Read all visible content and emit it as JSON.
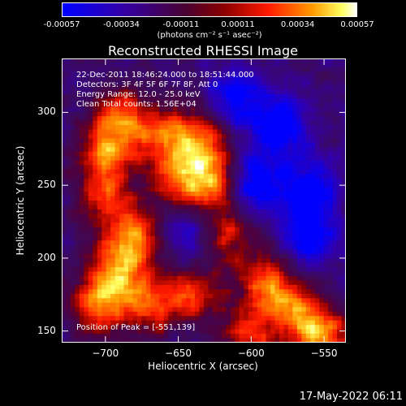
{
  "colorbar": {
    "ticks": [
      "-0.00057",
      "-0.00034",
      "-0.00011",
      "0.00011",
      "0.00034",
      "0.00057"
    ],
    "tick_values": [
      -0.00057,
      -0.00034,
      -0.00011,
      0.00011,
      0.00034,
      0.00057
    ],
    "unit": "(photons cm⁻² s⁻¹ asec⁻²)",
    "colors": [
      "#0000ff",
      "#4b0082",
      "#8b0000",
      "#ff0000",
      "#ff8c00",
      "#ffffff"
    ]
  },
  "chart_data": {
    "type": "heatmap",
    "title": "Reconstructed RHESSI Image",
    "xlabel": "Heliocentric X (arcsec)",
    "ylabel": "Heliocentric Y (arcsec)",
    "xlim": [
      -730,
      -535
    ],
    "ylim": [
      142,
      337
    ],
    "xticks": [
      -700,
      -650,
      -600,
      -550
    ],
    "xtick_labels": [
      "−700",
      "−650",
      "−600",
      "−550"
    ],
    "yticks": [
      150,
      200,
      250,
      300
    ],
    "ytick_labels": [
      "150",
      "200",
      "250",
      "300"
    ],
    "annotations": [
      "22-Dec-2011 18:46:24.000 to 18:51:44.000",
      "Detectors: 3F 4F 5F 6F 7F 8F, Att 0",
      "Energy Range: 12.0 - 25.0 keV",
      "Clean    Total counts: 1.56E+04",
      "Position of Peak = [-551,139]"
    ],
    "peak_position": [
      -551,
      139
    ],
    "bright_regions": [
      {
        "x": -700,
        "y": 270,
        "level": 0.8
      },
      {
        "x": -690,
        "y": 295,
        "level": 0.85
      },
      {
        "x": -660,
        "y": 285,
        "level": 0.7
      },
      {
        "x": -635,
        "y": 282,
        "level": 0.8
      },
      {
        "x": -625,
        "y": 252,
        "level": 1.0
      },
      {
        "x": -650,
        "y": 255,
        "level": 0.75
      },
      {
        "x": -700,
        "y": 240,
        "level": 0.7
      },
      {
        "x": -680,
        "y": 212,
        "level": 0.9
      },
      {
        "x": -695,
        "y": 190,
        "level": 0.85
      },
      {
        "x": -670,
        "y": 170,
        "level": 0.75
      },
      {
        "x": -705,
        "y": 165,
        "level": 0.8
      },
      {
        "x": -640,
        "y": 175,
        "level": 0.7
      },
      {
        "x": -620,
        "y": 215,
        "level": 0.7
      },
      {
        "x": -590,
        "y": 185,
        "level": 0.75
      },
      {
        "x": -570,
        "y": 165,
        "level": 0.8
      },
      {
        "x": -551,
        "y": 145,
        "level": 1.0
      },
      {
        "x": -600,
        "y": 150,
        "level": 0.7
      }
    ],
    "dim_regions": [
      {
        "x": -580,
        "y": 290,
        "level": -0.8
      },
      {
        "x": -560,
        "y": 250,
        "level": -0.7
      },
      {
        "x": -600,
        "y": 250,
        "level": -0.9
      },
      {
        "x": -640,
        "y": 215,
        "level": -0.6
      },
      {
        "x": -560,
        "y": 215,
        "level": -0.8
      },
      {
        "x": -610,
        "y": 310,
        "level": -0.7
      }
    ]
  },
  "timestamp": "17-May-2022 06:11"
}
